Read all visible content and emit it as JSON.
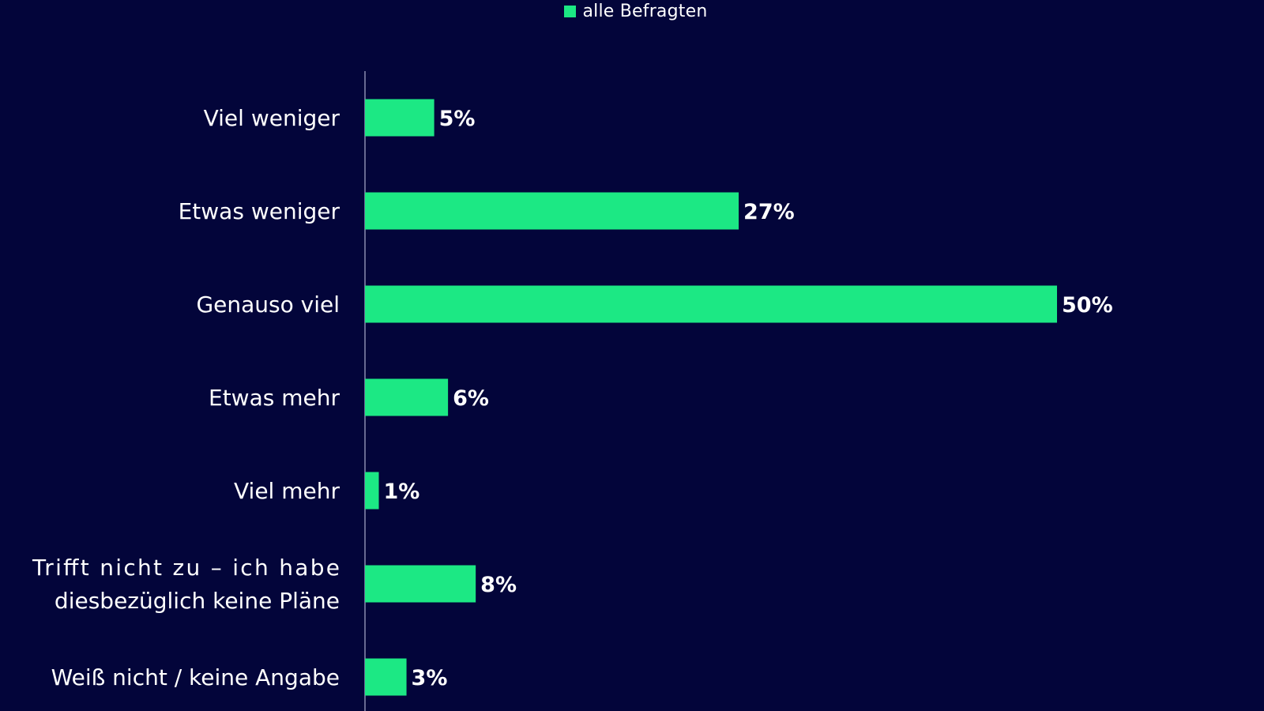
{
  "colors": {
    "background": "#03053a",
    "bar": "#1ce884",
    "axis": "#8a8cb0",
    "text": "#ffffff"
  },
  "chart_data": {
    "type": "bar",
    "orientation": "horizontal",
    "title": "",
    "xlabel": "",
    "ylabel": "",
    "legend": {
      "position": "top-center",
      "entries": [
        "alle Befragten"
      ]
    },
    "categories": [
      [
        "Viel weniger"
      ],
      [
        "Etwas weniger"
      ],
      [
        "Genauso viel"
      ],
      [
        "Etwas mehr"
      ],
      [
        "Viel mehr"
      ],
      [
        "Trifft nicht zu – ich habe",
        "diesbezüglich keine Pläne"
      ],
      [
        "Weiß nicht / keine Angabe"
      ]
    ],
    "series": [
      {
        "name": "alle Befragten",
        "values": [
          5,
          27,
          50,
          6,
          1,
          8,
          3
        ],
        "labels": [
          "5%",
          "27%",
          "50%",
          "6%",
          "1%",
          "8%",
          "3%"
        ]
      }
    ],
    "xlim": [
      0,
      57
    ],
    "grid": false
  }
}
